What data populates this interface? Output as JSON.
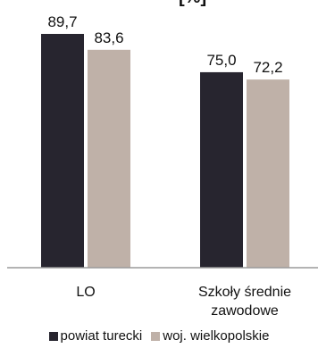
{
  "chart_data": {
    "type": "bar",
    "title_fragment": "[%]",
    "categories": [
      "LO",
      "Szkoły średnie\nzawodowe"
    ],
    "series": [
      {
        "name": "powiat turecki",
        "values": [
          89.7,
          75.0
        ],
        "labels": [
          "89,7",
          "75,0"
        ],
        "color": "#27252f"
      },
      {
        "name": "woj. wielkopolskie",
        "values": [
          83.6,
          72.2
        ],
        "labels": [
          "83,6",
          "72,2"
        ],
        "color": "#bfb1a8"
      }
    ],
    "ylim": [
      0,
      100
    ],
    "grid": false,
    "legend_position": "bottom"
  }
}
